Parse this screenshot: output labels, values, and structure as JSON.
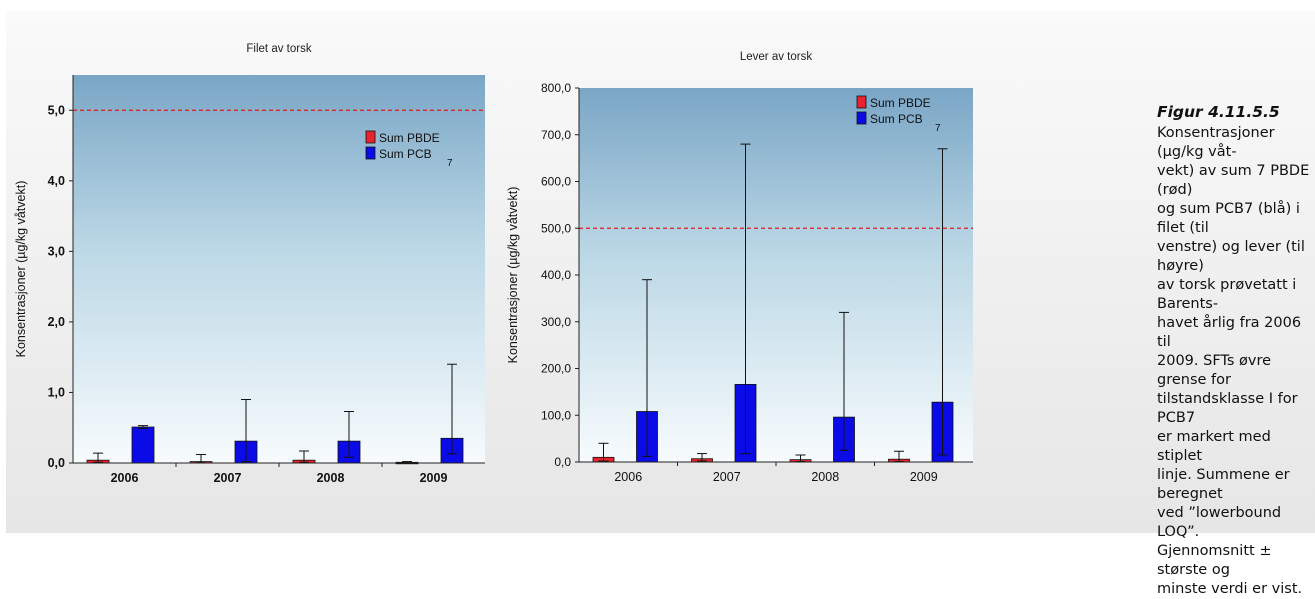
{
  "chart_data": [
    {
      "type": "bar",
      "title": "Filet av torsk",
      "xlabel": "",
      "ylabel": "Konsentrasjoner (µg/kg våtvekt)",
      "categories": [
        "2006",
        "2007",
        "2008",
        "2009"
      ],
      "ylim": [
        0,
        5.5
      ],
      "yticks": [
        "0,0",
        "1,0",
        "2,0",
        "3,0",
        "4,0",
        "5,0"
      ],
      "reference_line": 5.0,
      "legend": [
        "Sum PBDE",
        "Sum PCB",
        "7"
      ],
      "legend_position": "top-right",
      "series": [
        {
          "name": "Sum PBDE",
          "color": "#e8232e",
          "values": [
            0.04,
            0.02,
            0.04,
            0.01
          ],
          "min": [
            0.01,
            0.005,
            0.01,
            0.005
          ],
          "max": [
            0.14,
            0.12,
            0.17,
            0.02
          ]
        },
        {
          "name": "Sum PCB 7",
          "color": "#0b0be8",
          "values": [
            0.51,
            0.31,
            0.31,
            0.35
          ],
          "min": [
            0.49,
            0.02,
            0.08,
            0.13
          ],
          "max": [
            0.53,
            0.9,
            0.73,
            1.4
          ]
        }
      ]
    },
    {
      "type": "bar",
      "title": "Lever av torsk",
      "xlabel": "",
      "ylabel": "Konsentrasjoner (µg/kg våtvekt)",
      "categories": [
        "2006",
        "2007",
        "2008",
        "2009"
      ],
      "ylim": [
        0,
        800
      ],
      "yticks": [
        "0,0",
        "100,0",
        "200,0",
        "300,0",
        "400,0",
        "500,0",
        "600,0",
        "700,0",
        "800,0"
      ],
      "reference_line": 500,
      "legend": [
        "Sum PBDE",
        "Sum PCB",
        "7"
      ],
      "legend_position": "top-right",
      "series": [
        {
          "name": "Sum PBDE",
          "color": "#e8232e",
          "values": [
            10,
            7,
            5,
            6
          ],
          "min": [
            2,
            2,
            1,
            1
          ],
          "max": [
            40,
            18,
            15,
            23
          ]
        },
        {
          "name": "Sum PCB 7",
          "color": "#0b0be8",
          "values": [
            108,
            166,
            96,
            128
          ],
          "min": [
            12,
            18,
            25,
            15
          ],
          "max": [
            390,
            680,
            320,
            670
          ]
        }
      ]
    }
  ],
  "caption": {
    "title": "Figur 4.11.5.5",
    "lines": [
      "Konsentrasjoner (µg/kg våt-",
      "vekt) av sum 7 PBDE (rød)",
      "og sum PCB7 (blå) i filet (til",
      "venstre) og lever (til høyre)",
      "av torsk prøvetatt i Barents-",
      "havet årlig fra 2006 til",
      "2009. SFTs øvre grense for",
      "tilstandsklasse I for PCB7",
      "er markert med stiplet",
      "linje. Summene er beregnet",
      "ved ”lowerbound LOQ”.",
      "Gjennomsnitt ± største og",
      "minste verdi er vist."
    ]
  }
}
